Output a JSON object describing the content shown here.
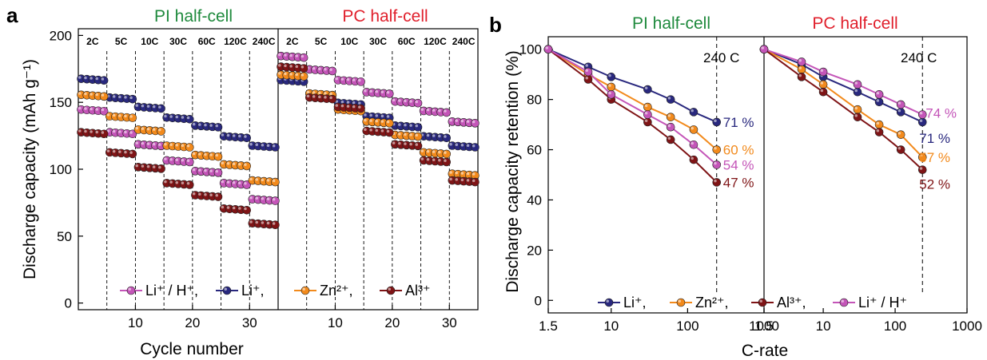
{
  "colors": {
    "li_h": "#c455b8",
    "li": "#29287e",
    "zn": "#f28a1c",
    "al": "#7f1416",
    "pi_title": "#1f8a3d",
    "pc_title": "#e0202c"
  },
  "panel_a": {
    "letter": "a",
    "pi_title": "PI half-cell",
    "pc_title": "PC half-cell",
    "rate_labels": [
      "2C",
      "5C",
      "10C",
      "30C",
      "60C",
      "120C",
      "240C"
    ],
    "legend": [
      "Li⁺ / H⁺,",
      "Li⁺,",
      "Zn²⁺,",
      "Al³⁺"
    ]
  },
  "panel_b": {
    "letter": "b",
    "pi_title": "PI half-cell",
    "pc_title": "PC half-cell",
    "rate_note_left": "240 C",
    "rate_note_right": "240 C",
    "legend": [
      "Li⁺,",
      "Zn²⁺,",
      "Al³⁺,",
      "Li⁺ / H⁺"
    ],
    "pi_end_labels": [
      "71 %",
      "60 %",
      "54 %",
      "47 %"
    ],
    "pc_end_labels": [
      "74 %",
      "71 %",
      "57 %",
      "52 %"
    ]
  },
  "chart_data": [
    {
      "type": "scatter",
      "title": "",
      "xlabel": "Cycle number",
      "ylabel": "Discharge capacity (mAh g⁻¹)",
      "xlim": [
        0,
        35
      ],
      "ylim": [
        -5,
        205
      ],
      "xticks": [
        10,
        20,
        30
      ],
      "yticks": [
        0,
        50,
        100,
        150,
        200
      ],
      "groups": [
        "PI half-cell",
        "PC half-cell"
      ],
      "rates": [
        "2C",
        "5C",
        "10C",
        "30C",
        "60C",
        "120C",
        "240C"
      ],
      "cycles_per_rate": 5,
      "series": [
        {
          "name": "Li⁺ / H⁺",
          "color_key": "li_h",
          "PI": [
            144,
            127,
            118,
            106,
            98,
            89,
            77
          ],
          "PC": [
            184,
            174,
            166,
            157,
            150,
            143,
            135
          ]
        },
        {
          "name": "Li⁺",
          "color_key": "li",
          "PI": [
            167,
            153,
            146,
            138,
            132,
            124,
            117
          ],
          "PC": [
            166,
            156,
            149,
            139,
            132,
            124,
            117
          ]
        },
        {
          "name": "Zn²⁺",
          "color_key": "zn",
          "PI": [
            155,
            139,
            129,
            117,
            110,
            103,
            91
          ],
          "PC": [
            170,
            156,
            144,
            135,
            125,
            112,
            96
          ]
        },
        {
          "name": "Al³⁺",
          "color_key": "al",
          "PI": [
            127,
            112,
            101,
            89,
            80,
            70,
            59
          ],
          "PC": [
            176,
            153,
            146,
            128,
            118,
            106,
            91
          ]
        }
      ]
    },
    {
      "type": "line",
      "title": "",
      "xlabel": "C-rate",
      "ylabel": "Discharge capacity retention (%)",
      "xscale": "log",
      "x": [
        1.5,
        5,
        10,
        30,
        60,
        120,
        240
      ],
      "xticks": [
        1.5,
        10,
        100,
        1000
      ],
      "yticks": [
        0,
        20,
        40,
        60,
        80,
        100
      ],
      "ylim": [
        -5,
        105
      ],
      "series": [
        {
          "name": "Li⁺",
          "color_key": "li",
          "PI": [
            100,
            93,
            89,
            84,
            80,
            75,
            71
          ],
          "PC": [
            100,
            94,
            89,
            83,
            79,
            75,
            71
          ]
        },
        {
          "name": "Zn²⁺",
          "color_key": "zn",
          "PI": [
            100,
            90,
            85,
            77,
            73,
            68,
            60
          ],
          "PC": [
            100,
            92,
            86,
            76,
            70,
            66,
            57
          ]
        },
        {
          "name": "Al³⁺",
          "color_key": "al",
          "PI": [
            100,
            88,
            80,
            71,
            64,
            56,
            47
          ],
          "PC": [
            100,
            89,
            83,
            73,
            67,
            60,
            52
          ]
        },
        {
          "name": "Li⁺ / H⁺",
          "color_key": "li_h",
          "PI": [
            100,
            91,
            82,
            74,
            69,
            62,
            54
          ],
          "PC": [
            100,
            95,
            91,
            86,
            82,
            78,
            74
          ]
        }
      ]
    }
  ]
}
